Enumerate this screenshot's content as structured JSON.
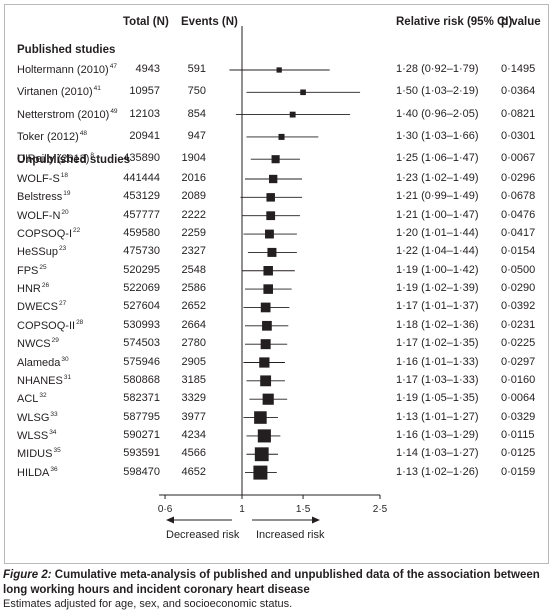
{
  "headers": {
    "total": "Total (N)",
    "events": "Events (N)",
    "rr": "Relative risk (95% CI)",
    "p": "p value"
  },
  "sections": {
    "published": "Published studies",
    "unpublished": "Unpublished studies"
  },
  "chart_data": {
    "type": "forest",
    "xlim": [
      0.6,
      2.5
    ],
    "xticks": [
      0.6,
      1,
      1.5,
      2.5
    ],
    "xtick_labels": [
      "0·6",
      "1",
      "1·5",
      "2·5"
    ],
    "reference_line": 1,
    "axis_left_label": "Decreased risk",
    "axis_right_label": "Increased risk",
    "rows": [
      {
        "group": "published",
        "study": "Holtermann (2010)",
        "ref": "47",
        "total": "4943",
        "events": "591",
        "rr": 1.28,
        "lo": 0.92,
        "hi": 1.79,
        "ci_text": "1·28 (0·92–1·79)",
        "p": "0·1495"
      },
      {
        "group": "published",
        "study": "Virtanen (2010)",
        "ref": "41",
        "total": "10957",
        "events": "750",
        "rr": 1.5,
        "lo": 1.03,
        "hi": 2.19,
        "ci_text": "1·50 (1·03–2·19)",
        "p": "0·0364"
      },
      {
        "group": "published",
        "study": "Netterstrom (2010)",
        "ref": "49",
        "total": "12103",
        "events": "854",
        "rr": 1.4,
        "lo": 0.96,
        "hi": 2.05,
        "ci_text": "1·40 (0·96–2·05)",
        "p": "0·0821"
      },
      {
        "group": "published",
        "study": "Toker (2012)",
        "ref": "48",
        "total": "20941",
        "events": "947",
        "rr": 1.3,
        "lo": 1.03,
        "hi": 1.66,
        "ci_text": "1·30 (1·03–1·66)",
        "p": "0·0301"
      },
      {
        "group": "published",
        "study": "O'Reilly (2013)",
        "ref": "8",
        "total": "435890",
        "events": "1904",
        "rr": 1.25,
        "lo": 1.06,
        "hi": 1.47,
        "ci_text": "1·25 (1·06–1·47)",
        "p": "0·0067"
      },
      {
        "group": "unpublished",
        "study": "WOLF-S",
        "ref": "18",
        "total": "441444",
        "events": "2016",
        "rr": 1.23,
        "lo": 1.02,
        "hi": 1.49,
        "ci_text": "1·23 (1·02–1·49)",
        "p": "0·0296"
      },
      {
        "group": "unpublished",
        "study": "Belstress",
        "ref": "19",
        "total": "453129",
        "events": "2089",
        "rr": 1.21,
        "lo": 0.99,
        "hi": 1.49,
        "ci_text": "1·21 (0·99–1·49)",
        "p": "0·0678"
      },
      {
        "group": "unpublished",
        "study": "WOLF-N",
        "ref": "20",
        "total": "457777",
        "events": "2222",
        "rr": 1.21,
        "lo": 1.0,
        "hi": 1.47,
        "ci_text": "1·21 (1·00–1·47)",
        "p": "0·0476"
      },
      {
        "group": "unpublished",
        "study": "COPSOQ-I",
        "ref": "22",
        "total": "459580",
        "events": "2259",
        "rr": 1.2,
        "lo": 1.01,
        "hi": 1.44,
        "ci_text": "1·20 (1·01–1·44)",
        "p": "0·0417"
      },
      {
        "group": "unpublished",
        "study": "HeSSup",
        "ref": "23",
        "total": "475730",
        "events": "2327",
        "rr": 1.22,
        "lo": 1.04,
        "hi": 1.44,
        "ci_text": "1·22 (1·04–1·44)",
        "p": "0·0154"
      },
      {
        "group": "unpublished",
        "study": "FPS",
        "ref": "25",
        "total": "520295",
        "events": "2548",
        "rr": 1.19,
        "lo": 1.0,
        "hi": 1.42,
        "ci_text": "1·19 (1·00–1·42)",
        "p": "0·0500"
      },
      {
        "group": "unpublished",
        "study": "HNR",
        "ref": "26",
        "total": "522069",
        "events": "2586",
        "rr": 1.19,
        "lo": 1.02,
        "hi": 1.39,
        "ci_text": "1·19 (1·02–1·39)",
        "p": "0·0290"
      },
      {
        "group": "unpublished",
        "study": "DWECS",
        "ref": "27",
        "total": "527604",
        "events": "2652",
        "rr": 1.17,
        "lo": 1.01,
        "hi": 1.37,
        "ci_text": "1·17 (1·01–1·37)",
        "p": "0·0392"
      },
      {
        "group": "unpublished",
        "study": "COPSOQ-II",
        "ref": "28",
        "total": "530993",
        "events": "2664",
        "rr": 1.18,
        "lo": 1.02,
        "hi": 1.36,
        "ci_text": "1·18 (1·02–1·36)",
        "p": "0·0231"
      },
      {
        "group": "unpublished",
        "study": "NWCS",
        "ref": "29",
        "total": "574503",
        "events": "2780",
        "rr": 1.17,
        "lo": 1.02,
        "hi": 1.35,
        "ci_text": "1·17 (1·02–1·35)",
        "p": "0·0225"
      },
      {
        "group": "unpublished",
        "study": "Alameda",
        "ref": "30",
        "total": "575946",
        "events": "2905",
        "rr": 1.16,
        "lo": 1.01,
        "hi": 1.33,
        "ci_text": "1·16 (1·01–1·33)",
        "p": "0·0297"
      },
      {
        "group": "unpublished",
        "study": "NHANES",
        "ref": "31",
        "total": "580868",
        "events": "3185",
        "rr": 1.17,
        "lo": 1.03,
        "hi": 1.33,
        "ci_text": "1·17 (1·03–1·33)",
        "p": "0·0160"
      },
      {
        "group": "unpublished",
        "study": "ACL",
        "ref": "32",
        "total": "582371",
        "events": "3329",
        "rr": 1.19,
        "lo": 1.05,
        "hi": 1.35,
        "ci_text": "1·19 (1·05–1·35)",
        "p": "0·0064"
      },
      {
        "group": "unpublished",
        "study": "WLSG",
        "ref": "33",
        "total": "587795",
        "events": "3977",
        "rr": 1.13,
        "lo": 1.01,
        "hi": 1.27,
        "ci_text": "1·13 (1·01–1·27)",
        "p": "0·0329"
      },
      {
        "group": "unpublished",
        "study": "WLSS",
        "ref": "34",
        "total": "590271",
        "events": "4234",
        "rr": 1.16,
        "lo": 1.03,
        "hi": 1.29,
        "ci_text": "1·16 (1·03–1·29)",
        "p": "0·0115"
      },
      {
        "group": "unpublished",
        "study": "MIDUS",
        "ref": "35",
        "total": "593591",
        "events": "4566",
        "rr": 1.14,
        "lo": 1.03,
        "hi": 1.27,
        "ci_text": "1·14 (1·03–1·27)",
        "p": "0·0125"
      },
      {
        "group": "unpublished",
        "study": "HILDA",
        "ref": "36",
        "total": "598470",
        "events": "4652",
        "rr": 1.13,
        "lo": 1.02,
        "hi": 1.26,
        "ci_text": "1·13 (1·02–1·26)",
        "p": "0·0159"
      }
    ]
  },
  "caption": {
    "fig": "Figure 2:",
    "title": " Cumulative meta-analysis of published and unpublished data of the association between long working hours and incident coronary heart disease",
    "note": "Estimates adjusted for age, sex, and socioeconomic status."
  }
}
